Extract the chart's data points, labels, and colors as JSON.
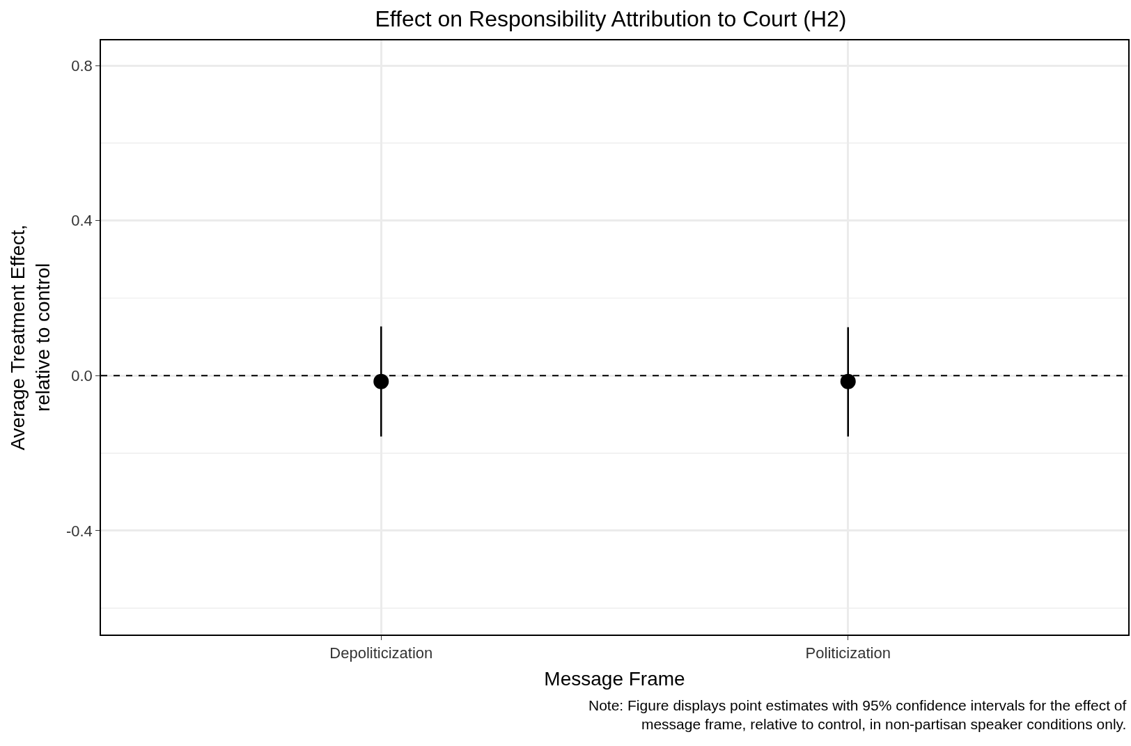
{
  "chart_data": {
    "type": "scatter",
    "title": "Effect on Responsibility Attribution to Court (H2)",
    "xlabel": "Message Frame",
    "ylabel": "Average Treatment Effect,\nrelative to control",
    "categories": [
      "Depoliticization",
      "Politicization"
    ],
    "series": [
      {
        "color": "#000000",
        "values": [
          -0.015,
          -0.015
        ],
        "errors": [
          [
            -0.157,
            0.127
          ],
          [
            -0.157,
            0.125
          ]
        ]
      }
    ],
    "ylim": [
      -0.668,
      0.865
    ],
    "yticks": [
      -0.4,
      {
        "value": -0.6,
        "label": null
      },
      {
        "value": -0.2,
        "label": null
      },
      {
        "value": 0,
        "label": "0.0"
      },
      {
        "value": 0.2,
        "label": null
      },
      0.4,
      {
        "value": 0.6,
        "label": null
      },
      0.8
    ],
    "ref_lines": [
      {
        "axis": "y",
        "value": 0,
        "line_style": "dashed",
        "color": "#000000"
      }
    ],
    "grid": true,
    "marker": "circle",
    "annotations": [
      "Note: Figure displays point estimates with 95% confidence intervals for the effect of\nmessage frame, relative to control, in non-partisan speaker conditions only."
    ]
  }
}
